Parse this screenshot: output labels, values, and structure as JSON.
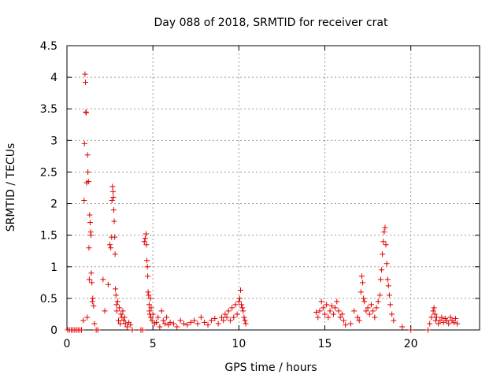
{
  "chart_data": {
    "type": "scatter",
    "title": "Day 088 of 2018, SRMTID for receiver crat",
    "xlabel": "GPS time / hours",
    "ylabel": "SRMTID / TECUs",
    "xlim": [
      0,
      24
    ],
    "ylim": [
      0,
      4.5
    ],
    "x_ticks": [
      0,
      5,
      10,
      15,
      20
    ],
    "x_tick_labels": [
      "0",
      "5",
      "10",
      "15",
      "20"
    ],
    "y_ticks": [
      0,
      0.5,
      1,
      1.5,
      2,
      2.5,
      3,
      3.5,
      4,
      4.5
    ],
    "y_tick_labels": [
      "0",
      "0.5",
      "1",
      "1.5",
      "2",
      "2.5",
      "3",
      "3.5",
      "4",
      "4.5"
    ],
    "grid": true,
    "marker": "+",
    "color": "#e00000",
    "series": [
      {
        "name": "SRMTID",
        "x": [
          0.05,
          0.15,
          0.25,
          0.35,
          0.45,
          0.55,
          0.65,
          0.75,
          0.85,
          0.95,
          1.0,
          1.02,
          1.05,
          1.08,
          1.1,
          1.12,
          1.15,
          1.18,
          1.2,
          1.22,
          1.25,
          1.28,
          1.3,
          1.32,
          1.35,
          1.38,
          1.4,
          1.42,
          1.45,
          1.48,
          1.5,
          1.55,
          1.6,
          1.7,
          1.8,
          2.1,
          2.2,
          2.4,
          2.5,
          2.55,
          2.6,
          2.62,
          2.65,
          2.68,
          2.7,
          2.72,
          2.75,
          2.78,
          2.8,
          2.82,
          2.85,
          2.88,
          2.9,
          2.95,
          3.0,
          3.05,
          3.1,
          3.15,
          3.2,
          3.25,
          3.3,
          3.35,
          3.4,
          3.5,
          3.6,
          3.7,
          3.8,
          4.3,
          4.4,
          4.5,
          4.55,
          4.6,
          4.62,
          4.65,
          4.68,
          4.7,
          4.72,
          4.75,
          4.78,
          4.8,
          4.82,
          4.85,
          4.88,
          4.9,
          4.95,
          5.0,
          5.1,
          5.2,
          5.3,
          5.4,
          5.5,
          5.6,
          5.7,
          5.8,
          5.9,
          6.0,
          6.2,
          6.4,
          6.6,
          6.8,
          7.0,
          7.2,
          7.4,
          7.6,
          7.8,
          8.0,
          8.2,
          8.4,
          8.6,
          8.8,
          9.0,
          9.1,
          9.2,
          9.3,
          9.4,
          9.5,
          9.6,
          9.7,
          9.8,
          9.9,
          10.0,
          10.05,
          10.1,
          10.15,
          10.2,
          10.25,
          10.3,
          10.35,
          10.4,
          14.5,
          14.6,
          14.7,
          14.8,
          14.9,
          15.0,
          15.1,
          15.2,
          15.3,
          15.4,
          15.5,
          15.6,
          15.7,
          15.8,
          15.9,
          16.0,
          16.1,
          16.2,
          16.5,
          16.7,
          16.9,
          17.0,
          17.1,
          17.15,
          17.2,
          17.25,
          17.3,
          17.4,
          17.5,
          17.6,
          17.7,
          17.8,
          17.9,
          18.0,
          18.1,
          18.2,
          18.25,
          18.3,
          18.35,
          18.4,
          18.45,
          18.5,
          18.55,
          18.6,
          18.65,
          18.7,
          18.75,
          18.8,
          18.9,
          19.0,
          19.5,
          20.0,
          21.0,
          21.1,
          21.2,
          21.3,
          21.35,
          21.4,
          21.45,
          21.5,
          21.6,
          21.7,
          21.8,
          21.9,
          22.0,
          22.1,
          22.2,
          22.3,
          22.4,
          22.5,
          22.6,
          22.7
        ],
        "y": [
          0,
          0,
          0,
          0,
          0,
          0,
          0,
          0,
          0,
          0.15,
          2.05,
          2.95,
          4.05,
          3.92,
          3.45,
          3.44,
          2.33,
          0.2,
          2.77,
          2.5,
          2.35,
          1.3,
          0.8,
          1.82,
          1.7,
          1.55,
          1.5,
          0.9,
          0.75,
          0.45,
          0.5,
          0.38,
          0.1,
          0,
          0,
          0.8,
          0.3,
          0.72,
          1.35,
          1.3,
          1.47,
          2.05,
          2.27,
          2.19,
          2.1,
          1.9,
          1.72,
          1.47,
          1.2,
          0.65,
          0.55,
          0.4,
          0.3,
          0.45,
          0.15,
          0.35,
          0.1,
          0.25,
          0.2,
          0.3,
          0.15,
          0.2,
          0.1,
          0.05,
          0.12,
          0.08,
          0,
          0,
          0,
          1.4,
          1.45,
          1.52,
          1.35,
          1.1,
          1.0,
          0.85,
          0.6,
          0.55,
          0.4,
          0.3,
          0.25,
          0.5,
          0.2,
          0.35,
          0.15,
          0.25,
          0.1,
          0.12,
          0.2,
          0.05,
          0.3,
          0.15,
          0.1,
          0.2,
          0.08,
          0.12,
          0.1,
          0.05,
          0.15,
          0.1,
          0.08,
          0.12,
          0.15,
          0.1,
          0.2,
          0.12,
          0.08,
          0.15,
          0.18,
          0.1,
          0.2,
          0.15,
          0.25,
          0.2,
          0.3,
          0.15,
          0.35,
          0.2,
          0.4,
          0.25,
          0.45,
          0.5,
          0.63,
          0.4,
          0.35,
          0.3,
          0.2,
          0.15,
          0.1,
          0.28,
          0.2,
          0.3,
          0.45,
          0.35,
          0.25,
          0.4,
          0.2,
          0.3,
          0.38,
          0.25,
          0.35,
          0.45,
          0.3,
          0.2,
          0.25,
          0.15,
          0.08,
          0.1,
          0.3,
          0.2,
          0.15,
          0.6,
          0.85,
          0.75,
          0.5,
          0.45,
          0.3,
          0.35,
          0.25,
          0.4,
          0.3,
          0.2,
          0.35,
          0.45,
          0.55,
          0.8,
          0.95,
          1.2,
          1.4,
          1.55,
          1.62,
          1.35,
          1.05,
          0.8,
          0.7,
          0.55,
          0.4,
          0.25,
          0.15,
          0.05,
          0,
          0,
          0.1,
          0.2,
          0.3,
          0.35,
          0.25,
          0.15,
          0.2,
          0.1,
          0.15,
          0.2,
          0.12,
          0.18,
          0.15,
          0.1,
          0.2,
          0.15,
          0.12,
          0.18,
          0.1
        ]
      }
    ]
  }
}
